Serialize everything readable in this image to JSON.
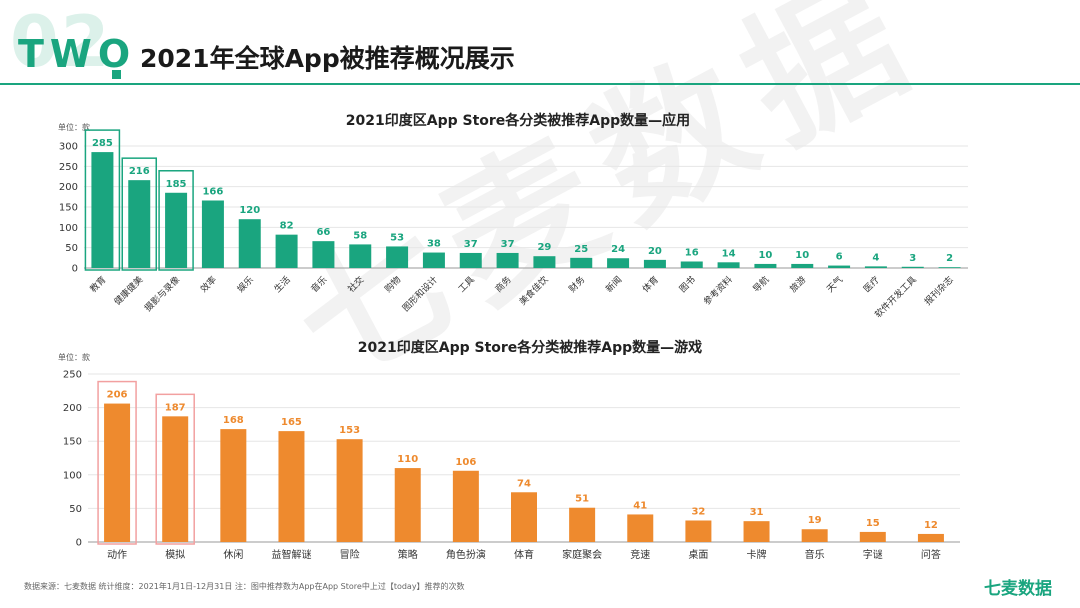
{
  "header": {
    "section_number": "02",
    "section_word": "TWO",
    "title": "2021年全球App被推荐概况展示"
  },
  "colors": {
    "green": "#1aa57f",
    "orange": "#ee8a2e",
    "highlight_green": "#1aa57f",
    "highlight_orange": "#f2a0a0"
  },
  "chart_data": [
    {
      "type": "bar",
      "title": "2021印度区App Store各分类被推荐App数量—应用",
      "unit_label": "单位：款",
      "ylim": [
        0,
        300
      ],
      "yticks": [
        0,
        50,
        100,
        150,
        200,
        250,
        300
      ],
      "categories": [
        "教育",
        "健康健美",
        "摄影与录像",
        "效率",
        "娱乐",
        "生活",
        "音乐",
        "社交",
        "购物",
        "图形和设计",
        "工具",
        "商务",
        "美食佳饮",
        "财务",
        "新闻",
        "体育",
        "图书",
        "参考资料",
        "导航",
        "旅游",
        "天气",
        "医疗",
        "软件开发工具",
        "报刊杂志"
      ],
      "values": [
        285,
        216,
        185,
        166,
        120,
        82,
        66,
        58,
        53,
        38,
        37,
        37,
        29,
        25,
        24,
        20,
        16,
        14,
        10,
        10,
        6,
        4,
        3,
        2
      ],
      "highlighted": [
        0,
        1,
        2
      ]
    },
    {
      "type": "bar",
      "title": "2021印度区App Store各分类被推荐App数量—游戏",
      "unit_label": "单位：款",
      "ylim": [
        0,
        250
      ],
      "yticks": [
        0,
        50,
        100,
        150,
        200,
        250
      ],
      "categories": [
        "动作",
        "模拟",
        "休闲",
        "益智解谜",
        "冒险",
        "策略",
        "角色扮演",
        "体育",
        "家庭聚会",
        "竞速",
        "桌面",
        "卡牌",
        "音乐",
        "字谜",
        "问答"
      ],
      "values": [
        206,
        187,
        168,
        165,
        153,
        110,
        106,
        74,
        51,
        41,
        32,
        31,
        19,
        15,
        12
      ],
      "highlighted": [
        0,
        1
      ]
    }
  ],
  "footer": {
    "note": "数据来源：七麦数据  统计维度：2021年1月1日-12月31日  注：图中推荐数为App在App Store中上过【today】推荐的次数",
    "brand": "七麦数据"
  },
  "watermark": "七麦数据"
}
